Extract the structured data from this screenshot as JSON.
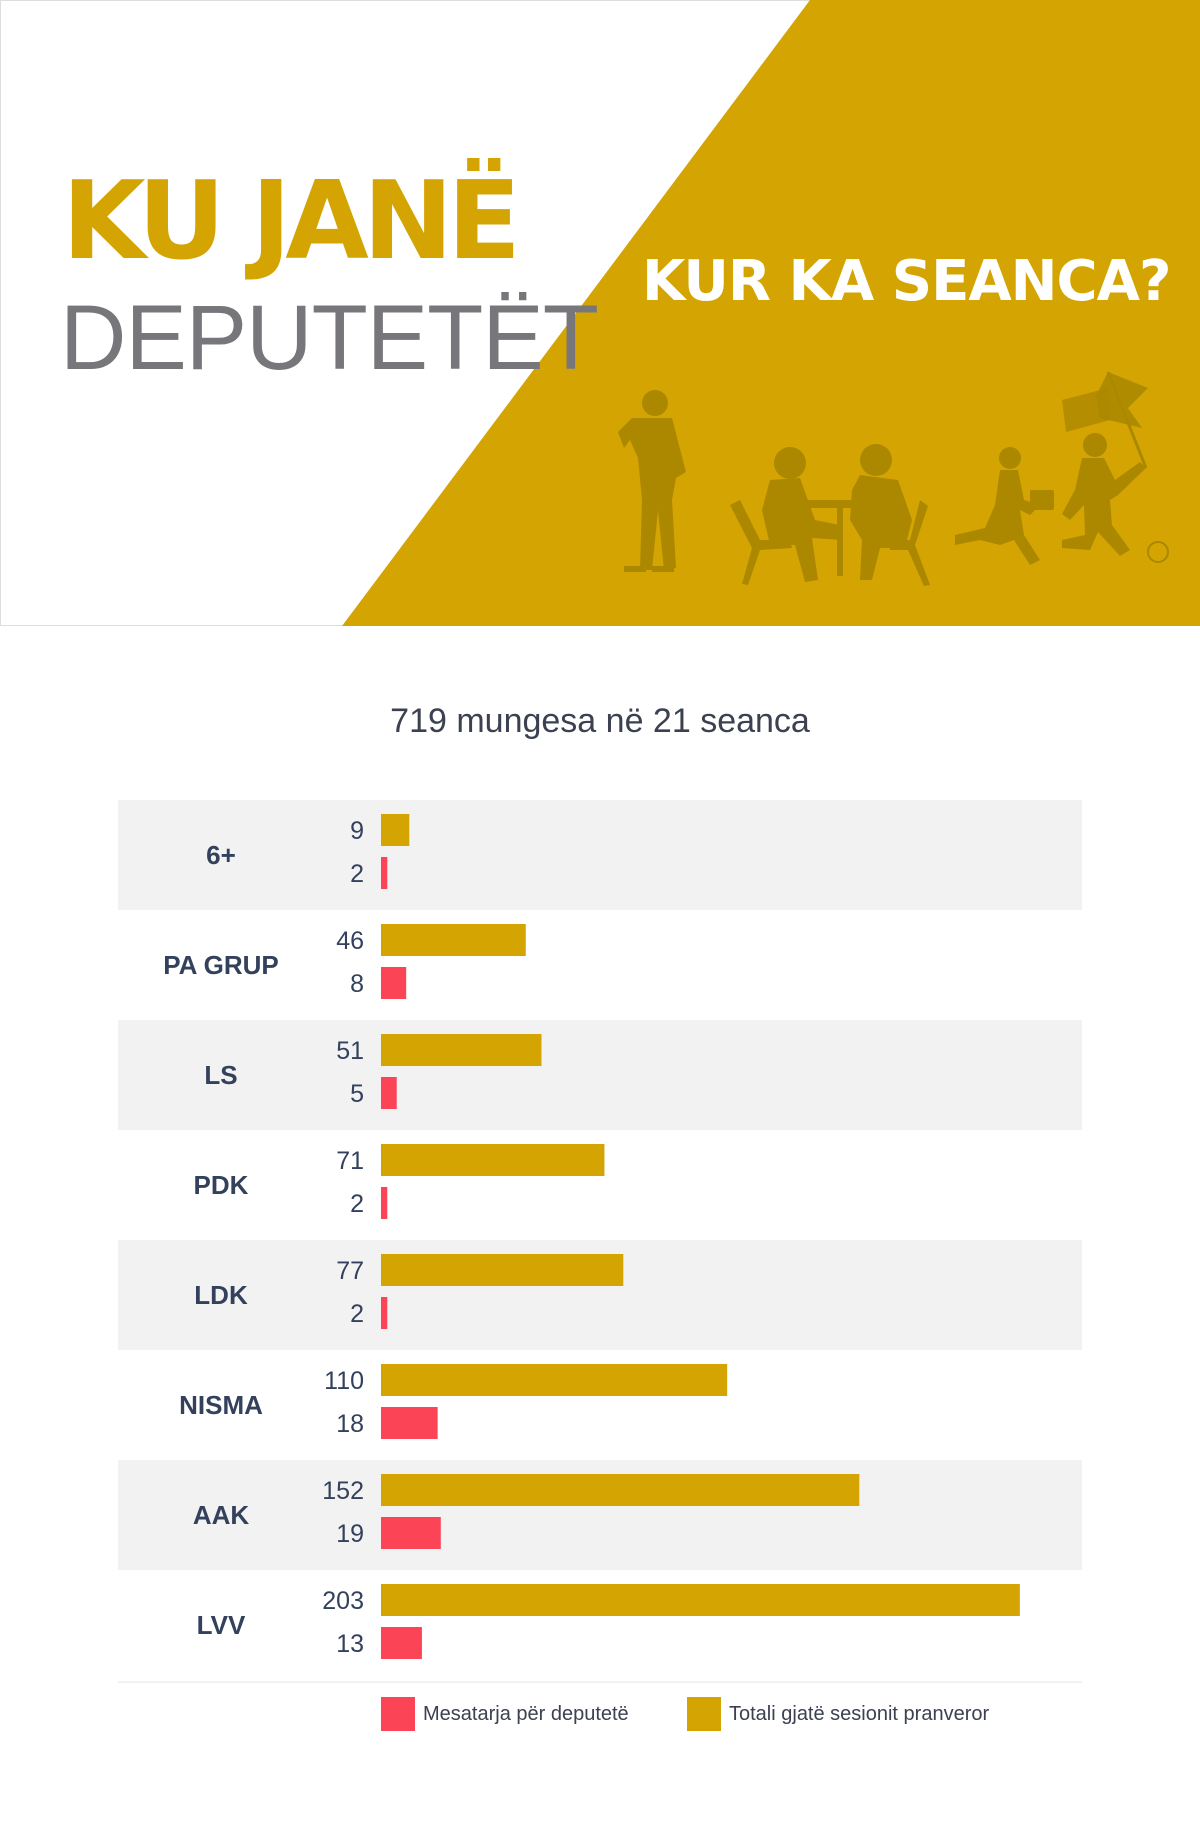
{
  "header": {
    "title_line1": "KU JANË",
    "title_line2": "DEPUTETËT",
    "tagline": "KUR KA SEANCA?"
  },
  "colors": {
    "gold": "#d4a403",
    "red": "#fc4457",
    "row_bg": "#f2f2f2",
    "text_dark": "#33415c",
    "text_gray": "#77777b"
  },
  "chart_data": {
    "type": "bar",
    "orientation": "horizontal",
    "title": "719 mungesa në 21 seanca",
    "categories": [
      "6+",
      "PA GRUP",
      "LS",
      "PDK",
      "LDK",
      "NISMA",
      "AAK",
      "LVV"
    ],
    "series": [
      {
        "name": "Totali gjatë sesionit pranveror",
        "color": "#d4a403",
        "values": [
          9,
          46,
          51,
          71,
          77,
          110,
          152,
          203
        ]
      },
      {
        "name": "Mesatarja për deputetë",
        "color": "#fc4457",
        "values": [
          2,
          8,
          5,
          2,
          2,
          18,
          19,
          13
        ]
      }
    ],
    "legend": [
      "Mesatarja për deputetë",
      "Totali gjatë sesionit pranveror"
    ],
    "legend_position": "bottom",
    "grid": false
  }
}
